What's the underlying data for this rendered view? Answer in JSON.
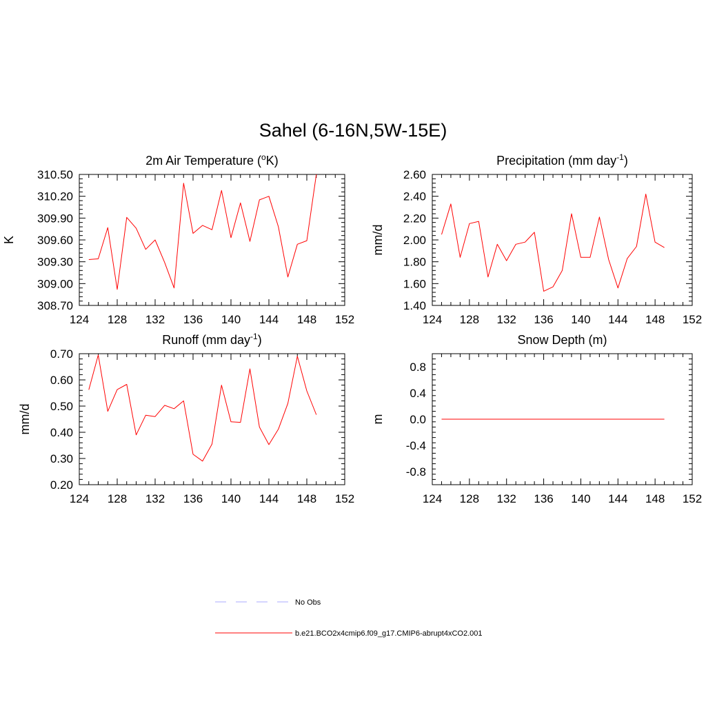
{
  "figure": {
    "title": "Sahel (6-16N,5W-15E)",
    "line_color": "#ff0000"
  },
  "chart_data": [
    {
      "type": "line",
      "title": "2m Air Temperature (",
      "title_sup": "o",
      "title_suffix": "K)",
      "ylabel": "K",
      "xlim": [
        124,
        152
      ],
      "ylim": [
        308.7,
        310.5
      ],
      "xticks": [
        "124",
        "128",
        "132",
        "136",
        "140",
        "144",
        "148",
        "152"
      ],
      "yticks": [
        "308.70",
        "309.00",
        "309.30",
        "309.60",
        "309.90",
        "310.20",
        "310.50"
      ],
      "series": [
        {
          "name": "b.e21.BCO2x4cmip6.f09_g17.CMIP6-abrupt4xCO2.001",
          "x": [
            125,
            126,
            127,
            128,
            129,
            130,
            131,
            132,
            133,
            134,
            135,
            136,
            137,
            138,
            139,
            140,
            141,
            142,
            143,
            144,
            145,
            146,
            147,
            148,
            149
          ],
          "values": [
            309.33,
            309.34,
            309.77,
            308.92,
            309.91,
            309.76,
            309.47,
            309.6,
            309.29,
            308.94,
            310.38,
            309.69,
            309.8,
            309.74,
            310.28,
            309.63,
            310.11,
            309.58,
            310.15,
            310.2,
            309.78,
            309.09,
            309.54,
            309.59,
            310.5
          ]
        }
      ]
    },
    {
      "type": "line",
      "title": "Precipitation (mm day",
      "title_sup": "-1",
      "title_suffix": ")",
      "ylabel": "mm/d",
      "xlim": [
        124,
        152
      ],
      "ylim": [
        1.4,
        2.6
      ],
      "xticks": [
        "124",
        "128",
        "132",
        "136",
        "140",
        "144",
        "148",
        "152"
      ],
      "yticks": [
        "1.40",
        "1.60",
        "1.80",
        "2.00",
        "2.20",
        "2.40",
        "2.60"
      ],
      "series": [
        {
          "name": "b.e21.BCO2x4cmip6.f09_g17.CMIP6-abrupt4xCO2.001",
          "x": [
            125,
            126,
            127,
            128,
            129,
            130,
            131,
            132,
            133,
            134,
            135,
            136,
            137,
            138,
            139,
            140,
            141,
            142,
            143,
            144,
            145,
            146,
            147,
            148,
            149
          ],
          "values": [
            2.05,
            2.33,
            1.84,
            2.15,
            2.17,
            1.66,
            1.96,
            1.81,
            1.96,
            1.98,
            2.07,
            1.53,
            1.57,
            1.72,
            2.24,
            1.84,
            1.84,
            2.21,
            1.82,
            1.56,
            1.83,
            1.94,
            2.42,
            1.98,
            1.93
          ]
        }
      ]
    },
    {
      "type": "line",
      "title": "Runoff (mm day",
      "title_sup": "-1",
      "title_suffix": ")",
      "ylabel": "mm/d",
      "xlim": [
        124,
        152
      ],
      "ylim": [
        0.2,
        0.7
      ],
      "xticks": [
        "124",
        "128",
        "132",
        "136",
        "140",
        "144",
        "148",
        "152"
      ],
      "yticks": [
        "0.20",
        "0.30",
        "0.40",
        "0.50",
        "0.60",
        "0.70"
      ],
      "series": [
        {
          "name": "b.e21.BCO2x4cmip6.f09_g17.CMIP6-abrupt4xCO2.001",
          "x": [
            125,
            126,
            127,
            128,
            129,
            130,
            131,
            132,
            133,
            134,
            135,
            136,
            137,
            138,
            139,
            140,
            141,
            142,
            143,
            144,
            145,
            146,
            147,
            148,
            149
          ],
          "values": [
            0.562,
            0.695,
            0.48,
            0.563,
            0.583,
            0.39,
            0.465,
            0.46,
            0.503,
            0.49,
            0.52,
            0.316,
            0.29,
            0.355,
            0.58,
            0.44,
            0.438,
            0.642,
            0.42,
            0.353,
            0.412,
            0.51,
            0.69,
            0.558,
            0.467
          ]
        }
      ]
    },
    {
      "type": "line",
      "title": "Snow Depth (m)",
      "title_sup": "",
      "title_suffix": "",
      "ylabel": "m",
      "xlim": [
        124,
        152
      ],
      "ylim": [
        -1.0,
        1.0
      ],
      "xticks": [
        "124",
        "128",
        "132",
        "136",
        "140",
        "144",
        "148",
        "152"
      ],
      "yticks": [
        "-0.8",
        "-0.4",
        "0.0",
        "0.4",
        "0.8"
      ],
      "ytick_values": [
        -0.8,
        -0.4,
        0.0,
        0.4,
        0.8
      ],
      "series": [
        {
          "name": "b.e21.BCO2x4cmip6.f09_g17.CMIP6-abrupt4xCO2.001",
          "x": [
            125,
            126,
            127,
            128,
            129,
            130,
            131,
            132,
            133,
            134,
            135,
            136,
            137,
            138,
            139,
            140,
            141,
            142,
            143,
            144,
            145,
            146,
            147,
            148,
            149
          ],
          "values": [
            0,
            0,
            0,
            0,
            0,
            0,
            0,
            0,
            0,
            0,
            0,
            0,
            0,
            0,
            0,
            0,
            0,
            0,
            0,
            0,
            0,
            0,
            0,
            0,
            0
          ]
        }
      ]
    }
  ],
  "legend": {
    "items": [
      {
        "label": "No Obs",
        "color": "#aaaaff",
        "dash": true
      },
      {
        "label": "b.e21.BCO2x4cmip6.f09_g17.CMIP6-abrupt4xCO2.001",
        "color": "#ff0000",
        "dash": false
      }
    ]
  }
}
